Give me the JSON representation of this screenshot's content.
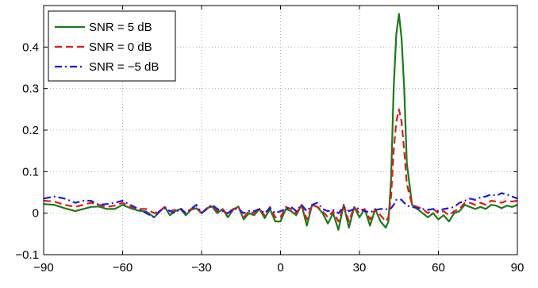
{
  "chart_data": {
    "type": "line",
    "title": "",
    "xlabel": "",
    "ylabel": "",
    "xlim": [
      -90,
      90
    ],
    "ylim": [
      -0.1,
      0.5
    ],
    "xticks": [
      -90,
      -60,
      -30,
      0,
      30,
      60,
      90
    ],
    "yticks": [
      -0.1,
      0,
      0.1,
      0.2,
      0.3,
      0.4
    ],
    "xtick_labels": [
      "−90",
      "−60",
      "−30",
      "0",
      "30",
      "60",
      "90"
    ],
    "ytick_labels": [
      "−0.1",
      "0",
      "0.1",
      "0.2",
      "0.3",
      "0.4"
    ],
    "grid": true,
    "legend_position": "top-left",
    "series": [
      {
        "name": "SNR = 5 dB",
        "color": "#1a7a1a",
        "style": "solid",
        "x": [
          -90,
          -86,
          -82,
          -78,
          -75,
          -72,
          -69,
          -66,
          -63,
          -60,
          -57,
          -54,
          -51,
          -48,
          -46,
          -44,
          -42,
          -40,
          -38,
          -36,
          -34,
          -32,
          -30,
          -28,
          -26,
          -24,
          -22,
          -20,
          -18,
          -16,
          -14,
          -12,
          -10,
          -8,
          -6,
          -4,
          -2,
          0,
          2,
          4,
          6,
          8,
          10,
          12,
          14,
          16,
          18,
          20,
          22,
          24,
          26,
          28,
          30,
          32,
          34,
          36,
          38,
          40,
          41,
          42,
          43,
          44,
          45,
          46,
          47,
          48,
          50,
          52,
          54,
          56,
          58,
          60,
          62,
          64,
          66,
          68,
          70,
          72,
          74,
          76,
          78,
          80,
          82,
          84,
          86,
          88,
          90
        ],
        "y": [
          0.022,
          0.02,
          0.012,
          0.005,
          0.01,
          0.015,
          0.016,
          0.01,
          0.01,
          0.02,
          0.012,
          0.006,
          0.004,
          -0.01,
          0.003,
          0.015,
          -0.005,
          0.005,
          0.01,
          -0.005,
          0.008,
          0.012,
          0.0,
          0.012,
          0.016,
          0.0,
          0.01,
          -0.01,
          0.008,
          0.016,
          -0.015,
          0.0,
          -0.005,
          0.01,
          -0.012,
          0.01,
          -0.02,
          -0.02,
          0.01,
          0.005,
          -0.005,
          0.02,
          -0.03,
          0.02,
          0.015,
          0.0,
          -0.025,
          0.0,
          -0.04,
          0.02,
          -0.035,
          0.015,
          -0.01,
          0.01,
          -0.03,
          0.01,
          -0.02,
          -0.035,
          -0.02,
          0.08,
          0.3,
          0.43,
          0.48,
          0.42,
          0.3,
          0.12,
          0.02,
          0.01,
          0.0,
          -0.01,
          0.0,
          -0.015,
          -0.005,
          -0.02,
          0.0,
          0.005,
          0.02,
          0.015,
          0.01,
          0.015,
          0.01,
          0.02,
          0.018,
          0.012,
          0.018,
          0.015,
          0.02
        ]
      },
      {
        "name": "SNR = 0 dB",
        "color": "#e81818",
        "style": "dashed",
        "x": [
          -90,
          -86,
          -82,
          -78,
          -75,
          -72,
          -69,
          -66,
          -63,
          -60,
          -57,
          -54,
          -51,
          -48,
          -46,
          -44,
          -42,
          -40,
          -38,
          -36,
          -34,
          -32,
          -30,
          -28,
          -26,
          -24,
          -22,
          -20,
          -18,
          -16,
          -14,
          -12,
          -10,
          -8,
          -6,
          -4,
          -2,
          0,
          2,
          4,
          6,
          8,
          10,
          12,
          14,
          16,
          18,
          20,
          22,
          24,
          26,
          28,
          30,
          32,
          34,
          36,
          38,
          40,
          41,
          42,
          43,
          44,
          45,
          46,
          47,
          48,
          50,
          52,
          54,
          56,
          58,
          60,
          62,
          64,
          66,
          68,
          70,
          72,
          74,
          76,
          78,
          80,
          82,
          84,
          86,
          88,
          90
        ],
        "y": [
          0.03,
          0.028,
          0.02,
          0.015,
          0.02,
          0.025,
          0.02,
          0.015,
          0.018,
          0.025,
          0.015,
          0.01,
          0.01,
          0.0,
          0.005,
          0.015,
          0.005,
          0.008,
          0.01,
          0.0,
          0.01,
          0.015,
          0.0,
          0.01,
          0.02,
          0.005,
          0.01,
          -0.005,
          0.01,
          0.015,
          -0.01,
          0.005,
          0.0,
          0.01,
          -0.005,
          0.015,
          -0.01,
          -0.01,
          0.015,
          0.01,
          0.0,
          0.02,
          -0.015,
          0.02,
          0.015,
          0.005,
          -0.01,
          0.005,
          -0.02,
          0.02,
          -0.02,
          0.015,
          0.0,
          0.01,
          -0.015,
          0.01,
          -0.005,
          -0.02,
          -0.01,
          0.04,
          0.15,
          0.22,
          0.25,
          0.22,
          0.15,
          0.07,
          0.02,
          0.015,
          0.01,
          0.0,
          0.01,
          0.0,
          0.005,
          -0.005,
          0.005,
          0.01,
          0.025,
          0.025,
          0.02,
          0.025,
          0.02,
          0.03,
          0.028,
          0.025,
          0.03,
          0.028,
          0.03
        ]
      },
      {
        "name": "SNR = −5 dB",
        "color": "#1a1ae8",
        "style": "dashdot",
        "x": [
          -90,
          -86,
          -82,
          -78,
          -75,
          -72,
          -69,
          -66,
          -63,
          -60,
          -57,
          -54,
          -51,
          -48,
          -46,
          -44,
          -42,
          -40,
          -38,
          -36,
          -34,
          -32,
          -30,
          -28,
          -26,
          -24,
          -22,
          -20,
          -18,
          -16,
          -14,
          -12,
          -10,
          -8,
          -6,
          -4,
          -2,
          0,
          2,
          4,
          6,
          8,
          10,
          12,
          14,
          16,
          18,
          20,
          22,
          24,
          26,
          28,
          30,
          32,
          34,
          36,
          38,
          40,
          41,
          42,
          43,
          44,
          45,
          46,
          47,
          48,
          50,
          52,
          54,
          56,
          58,
          60,
          62,
          64,
          66,
          68,
          70,
          72,
          74,
          76,
          78,
          80,
          82,
          84,
          86,
          88,
          90
        ],
        "y": [
          0.035,
          0.04,
          0.035,
          0.025,
          0.03,
          0.03,
          0.02,
          0.022,
          0.025,
          0.03,
          0.02,
          0.01,
          0.0,
          -0.01,
          0.005,
          0.012,
          0.005,
          0.0,
          0.012,
          0.0,
          0.01,
          0.02,
          0.0,
          0.01,
          0.02,
          0.01,
          0.005,
          0.0,
          0.01,
          0.01,
          0.0,
          0.005,
          0.005,
          0.01,
          0.0,
          0.012,
          0.0,
          0.005,
          0.01,
          0.015,
          0.005,
          0.02,
          0.005,
          0.02,
          0.025,
          0.01,
          0.005,
          0.008,
          0.0,
          0.015,
          0.005,
          0.01,
          0.012,
          0.005,
          0.002,
          0.008,
          0.01,
          0.01,
          0.008,
          0.012,
          0.02,
          0.032,
          0.034,
          0.032,
          0.025,
          0.018,
          0.015,
          0.012,
          0.01,
          0.008,
          0.01,
          0.005,
          0.01,
          0.012,
          0.015,
          0.025,
          0.03,
          0.035,
          0.032,
          0.038,
          0.04,
          0.045,
          0.042,
          0.048,
          0.045,
          0.04,
          0.035
        ]
      }
    ]
  }
}
